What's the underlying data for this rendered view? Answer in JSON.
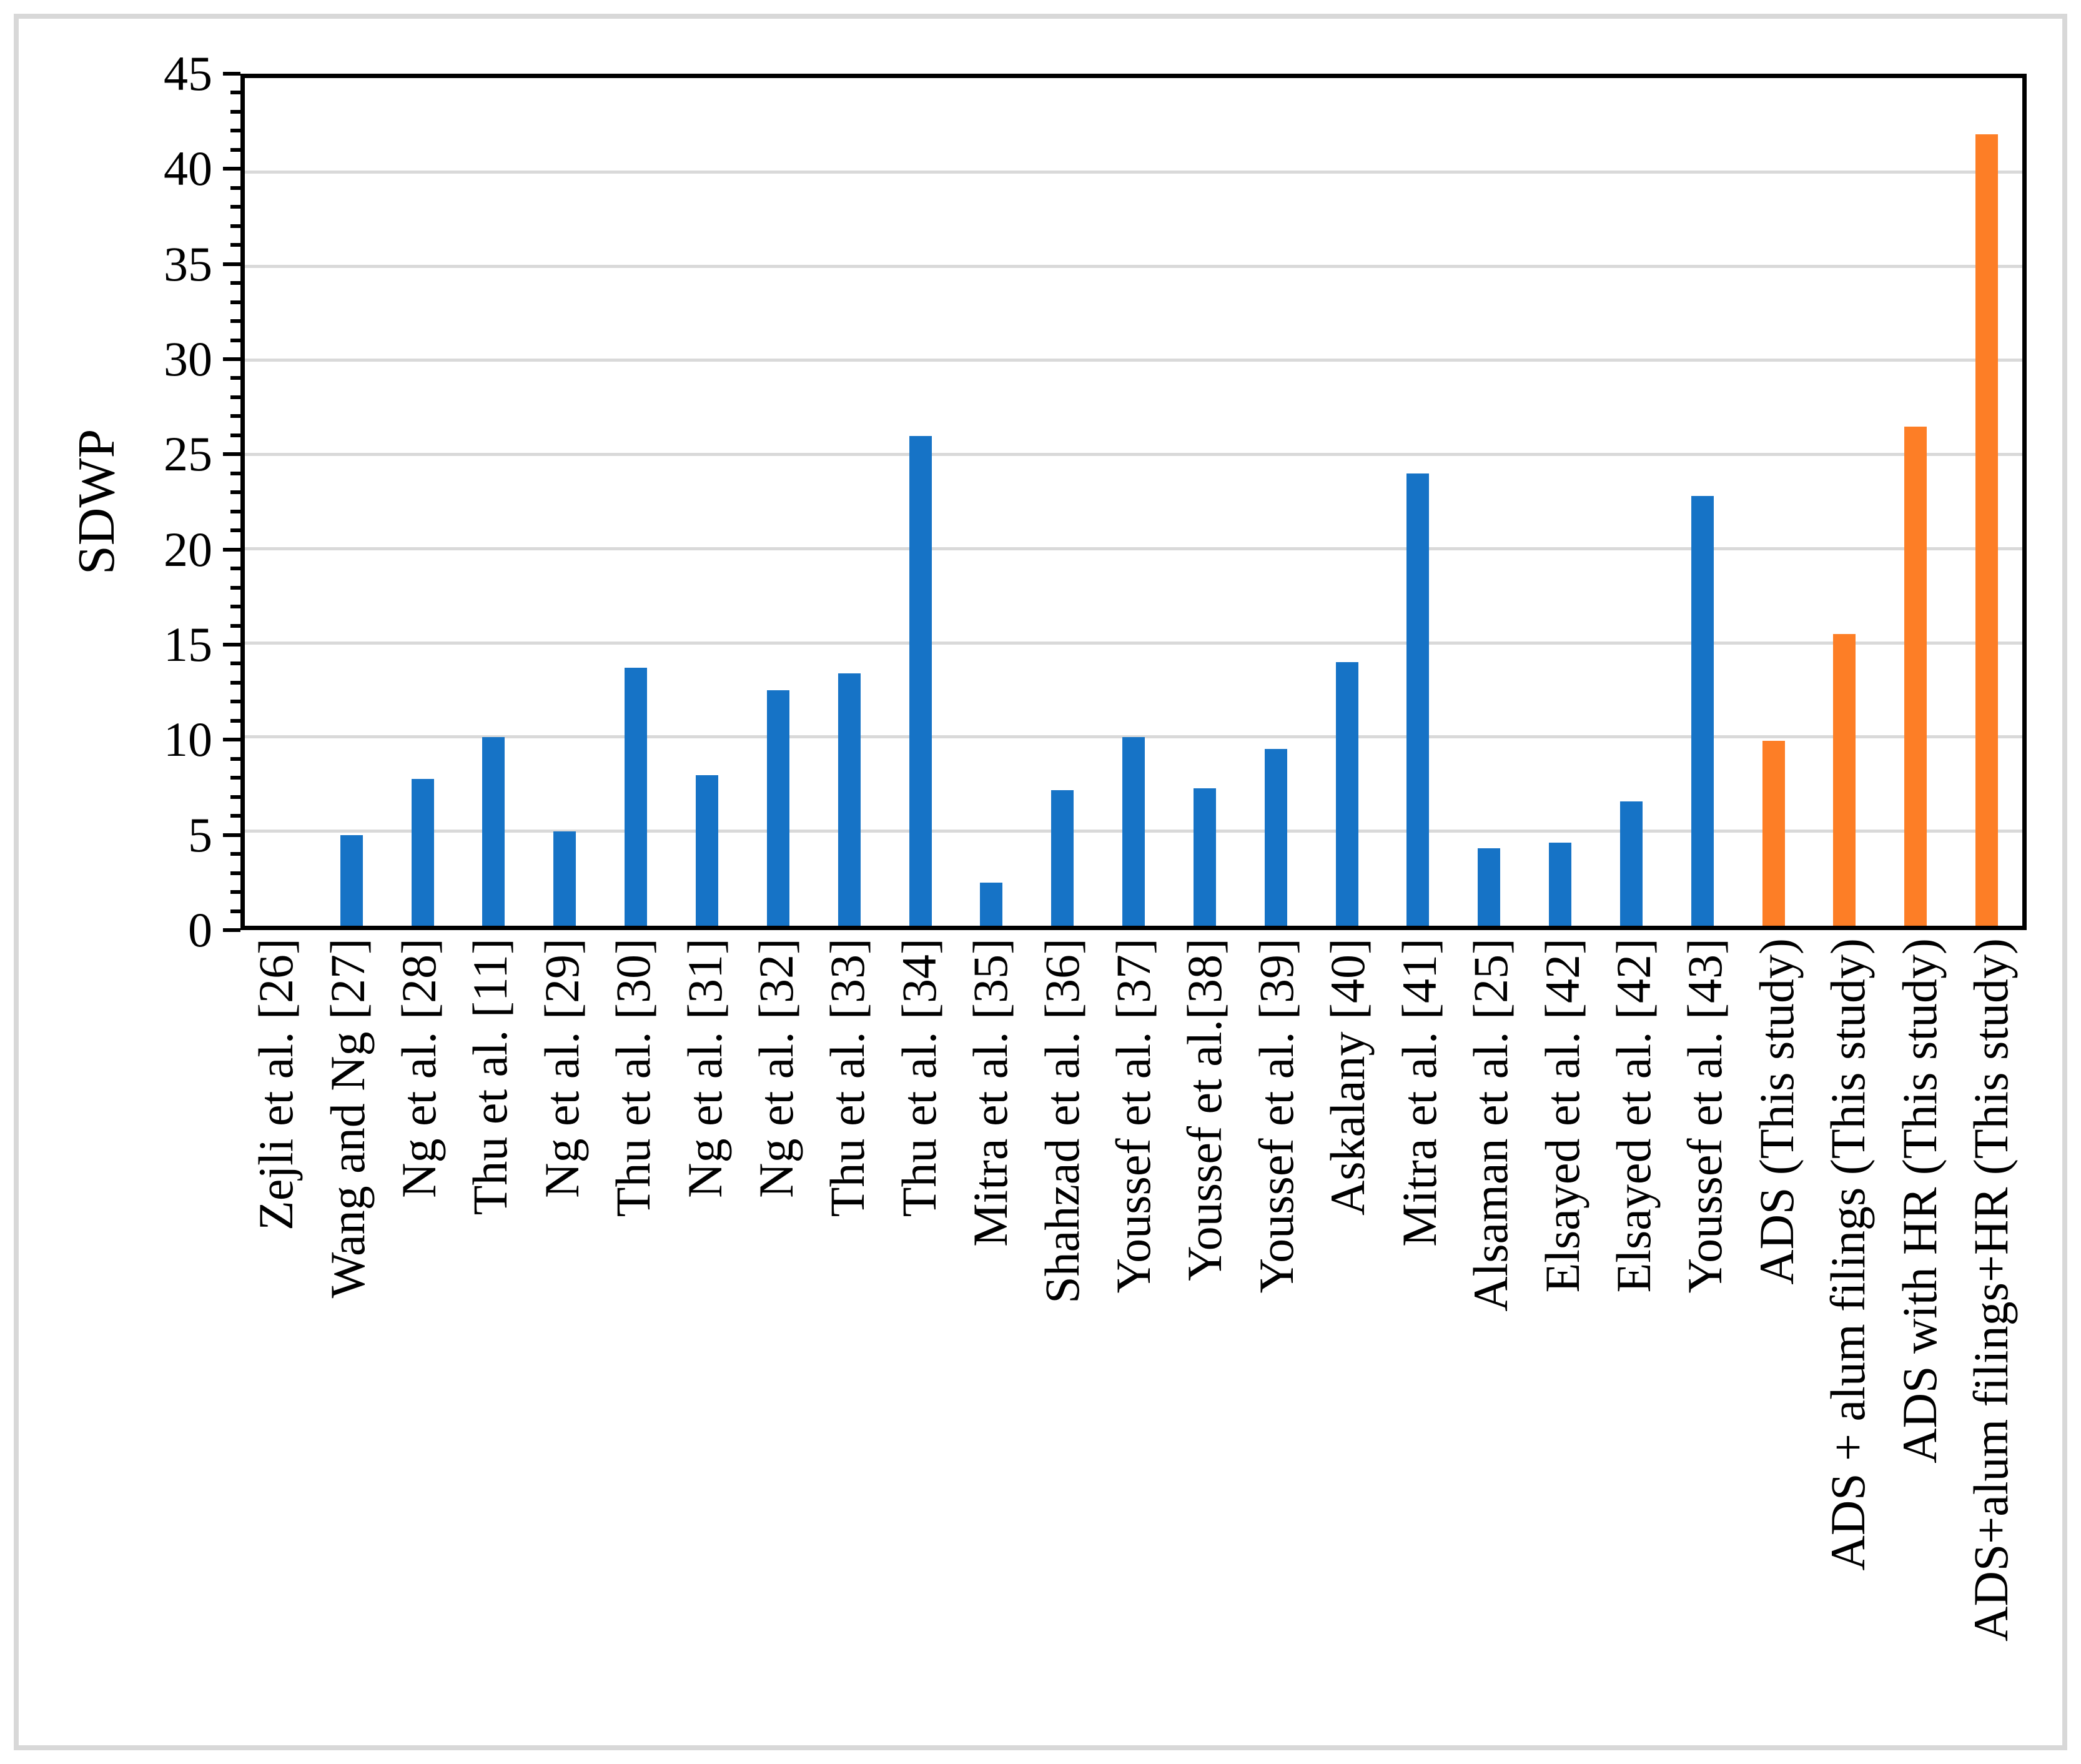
{
  "figure": {
    "background": "#FFFFFF",
    "frame_color": "#D8D8D8"
  },
  "chart_data": {
    "type": "bar",
    "title": "",
    "xlabel": "",
    "ylabel": "SDWP",
    "ylim": [
      0,
      45
    ],
    "ytick_interval": 5,
    "minor_tick_interval": 1,
    "yticks": [
      0,
      5,
      10,
      15,
      20,
      25,
      30,
      35,
      40,
      45
    ],
    "grid": "horizontal",
    "gridline_color": "#D9D9D9",
    "legend_position": "none",
    "bar_group_colors": {
      "literature": "#1673C6",
      "this_study": "#FD7E26"
    },
    "categories": [
      "Zejli et al. [26]",
      "Wang and Ng [27]",
      "Ng et al. [28]",
      "Thu et al. [11]",
      "Ng et al. [29]",
      "Thu et al. [30]",
      "Ng et al. [31]",
      "Ng et al. [32]",
      "Thu et al. [33]",
      "Thu et al. [34]",
      "Mitra et al. [35]",
      "Shahzad et al. [36]",
      "Youssef et al. [37]",
      "Youssef et al.[38]",
      "Youssef et al. [39]",
      "Askalany [40]",
      "Mitra et al. [41]",
      "Alsaman et al. [25]",
      "Elsayed et al. [42]",
      "Elsayed et al. [42]",
      "Youssef et al. [43]",
      "ADS (This study)",
      "ADS + alum filings (This study)",
      "ADS with HR (This study)",
      "ADS+alum filings+HR (This study)"
    ],
    "values": [
      0,
      4.8,
      7.8,
      10.0,
      5.0,
      13.7,
      8.0,
      12.5,
      13.4,
      26.0,
      2.3,
      7.2,
      10.0,
      7.3,
      9.4,
      14.0,
      24.0,
      4.1,
      4.4,
      6.6,
      22.8,
      9.8,
      15.5,
      26.5,
      42.0
    ],
    "groups": [
      "literature",
      "literature",
      "literature",
      "literature",
      "literature",
      "literature",
      "literature",
      "literature",
      "literature",
      "literature",
      "literature",
      "literature",
      "literature",
      "literature",
      "literature",
      "literature",
      "literature",
      "literature",
      "literature",
      "literature",
      "literature",
      "this_study",
      "this_study",
      "this_study",
      "this_study"
    ]
  }
}
